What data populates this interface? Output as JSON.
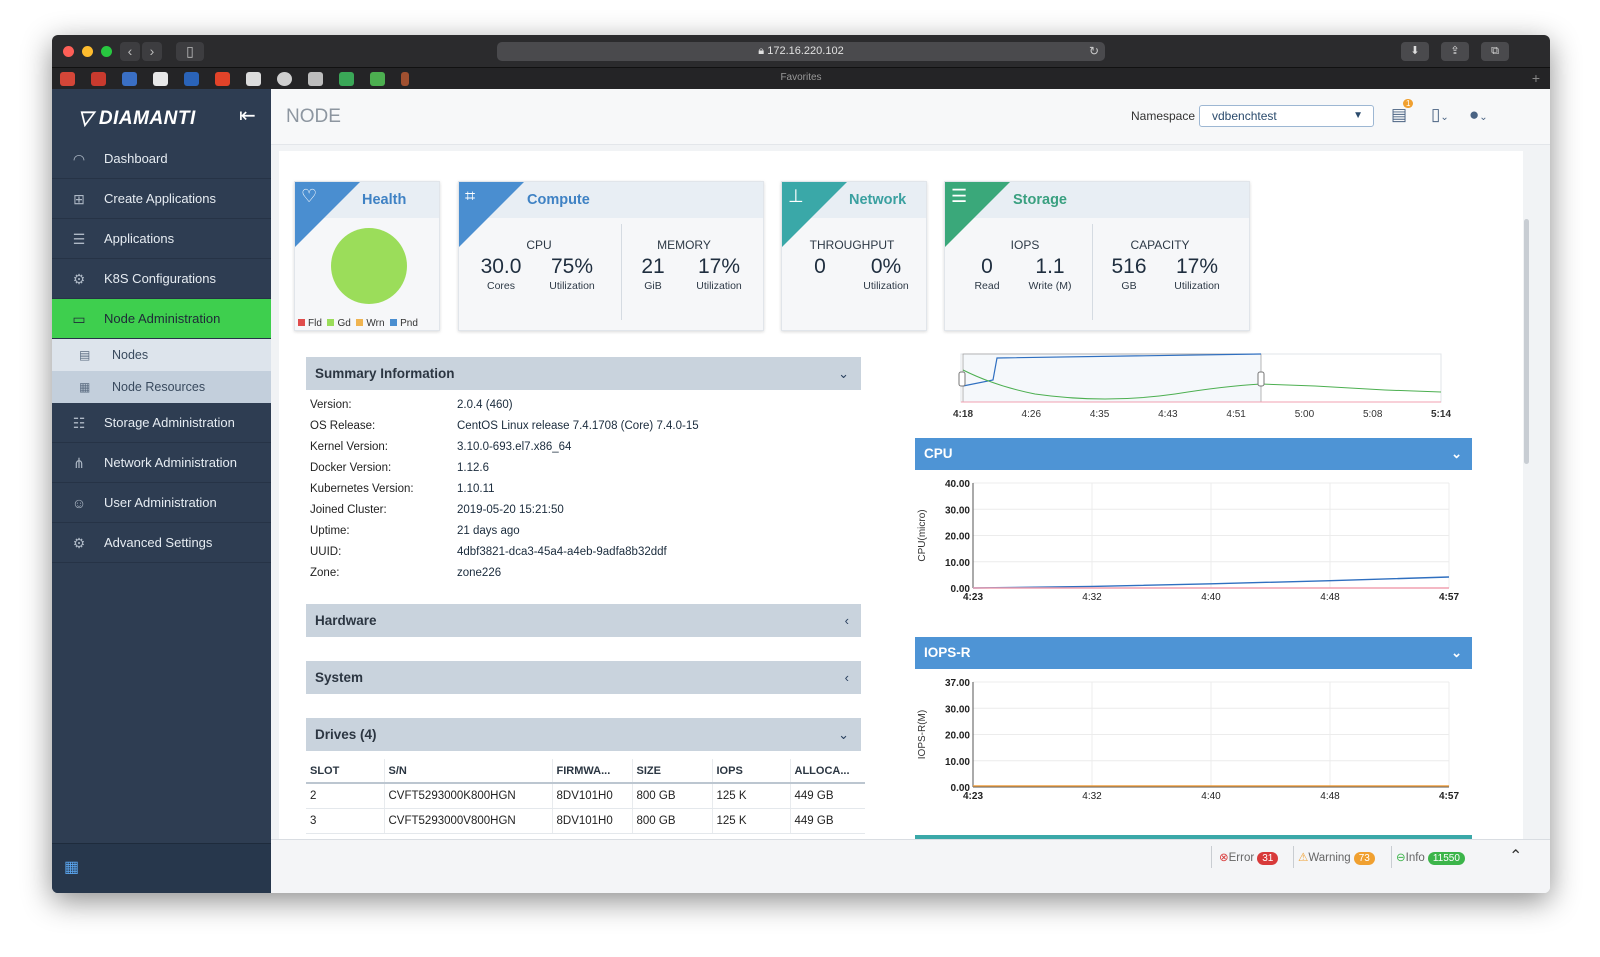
{
  "browser": {
    "url": "172.16.220.102",
    "favorites_label": "Favorites"
  },
  "sidebar": {
    "logo": "DIAMANTI",
    "items": [
      {
        "label": "Dashboard",
        "icon": "dashboard-gauge-icon"
      },
      {
        "label": "Create Applications",
        "icon": "plus-square-icon"
      },
      {
        "label": "Applications",
        "icon": "list-icon"
      },
      {
        "label": "K8S Configurations",
        "icon": "gear-cluster-icon"
      },
      {
        "label": "Node Administration",
        "icon": "monitor-icon",
        "active": true
      },
      {
        "label": "Storage Administration",
        "icon": "database-icon"
      },
      {
        "label": "Network Administration",
        "icon": "network-icon"
      },
      {
        "label": "User Administration",
        "icon": "users-icon"
      },
      {
        "label": "Advanced Settings",
        "icon": "settings-icon"
      }
    ],
    "sub_items": [
      {
        "label": "Nodes",
        "icon": "server-icon"
      },
      {
        "label": "Node Resources",
        "icon": "server-stack-icon",
        "selected": true
      }
    ]
  },
  "header": {
    "title": "NODE",
    "namespace_label": "Namespace",
    "namespace_value": "vdbenchtest",
    "notification_count": "1"
  },
  "cards": {
    "health": {
      "title": "Health",
      "legend": [
        "Fld",
        "Gd",
        "Wrn",
        "Pnd"
      ],
      "status_color": "#9bdd5a"
    },
    "compute": {
      "title": "Compute",
      "cpu_label": "CPU",
      "cpu_cores": "30.0",
      "cpu_cores_unit": "Cores",
      "cpu_util": "75%",
      "cpu_util_unit": "Utilization",
      "memory_label": "MEMORY",
      "mem_value": "21",
      "mem_unit": "GiB",
      "mem_util": "17%",
      "mem_util_unit": "Utilization"
    },
    "network": {
      "title": "Network",
      "throughput_label": "THROUGHPUT",
      "value": "0",
      "util": "0%",
      "util_unit": "Utilization"
    },
    "storage": {
      "title": "Storage",
      "iops_label": "IOPS",
      "read": "0",
      "read_unit": "Read",
      "write": "1.1",
      "write_unit": "Write (M)",
      "capacity_label": "CAPACITY",
      "capacity": "516",
      "capacity_unit": "GB",
      "cap_util": "17%",
      "cap_util_unit": "Utilization"
    }
  },
  "summary": {
    "title": "Summary Information",
    "rows": [
      {
        "key": "Version:",
        "value": "2.0.4 (460)"
      },
      {
        "key": "OS Release:",
        "value": "CentOS Linux release 7.4.1708 (Core) 7.4.0-15"
      },
      {
        "key": "Kernel Version:",
        "value": "3.10.0-693.el7.x86_64"
      },
      {
        "key": "Docker Version:",
        "value": "1.12.6"
      },
      {
        "key": "Kubernetes Version:",
        "value": "1.10.11"
      },
      {
        "key": "Joined Cluster:",
        "value": "2019-05-20 15:21:50"
      },
      {
        "key": "Uptime:",
        "value": "21 days ago"
      },
      {
        "key": "UUID:",
        "value": "4dbf3821-dca3-45a4-a4eb-9adfa8b32ddf"
      },
      {
        "key": "Zone:",
        "value": "zone226"
      }
    ]
  },
  "sections": {
    "hardware": "Hardware",
    "system": "System",
    "drives": "Drives (4)"
  },
  "drives_table": {
    "headers": [
      "SLOT",
      "S/N",
      "FIRMWA...",
      "SIZE",
      "IOPS",
      "ALLOCA..."
    ],
    "rows": [
      [
        "2",
        "CVFT5293000K800HGN",
        "8DV101H0",
        "800 GB",
        "125 K",
        "449 GB"
      ],
      [
        "3",
        "CVFT5293000V800HGN",
        "8DV101H0",
        "800 GB",
        "125 K",
        "449 GB"
      ]
    ]
  },
  "timeline": {
    "ticks": [
      "4:18",
      "4:26",
      "4:35",
      "4:43",
      "4:51",
      "5:00",
      "5:08",
      "5:14"
    ]
  },
  "chart_data": [
    {
      "type": "line",
      "title": "CPU",
      "ylabel": "CPU(micro)",
      "x": [
        "4:23",
        "4:32",
        "4:40",
        "4:48",
        "4:57"
      ],
      "yticks": [
        "40.00",
        "30.00",
        "20.00",
        "10.00",
        "0.00"
      ],
      "ylim": [
        0,
        40
      ],
      "series": [
        {
          "values": [
            0.0,
            0.6,
            1.6,
            2.8,
            4.2
          ],
          "color": "#2f6fc0"
        },
        {
          "values": [
            0.0,
            0.0,
            0.0,
            0.0,
            0.0
          ],
          "color": "#f0a0b0"
        }
      ]
    },
    {
      "type": "line",
      "title": "IOPS-R",
      "ylabel": "IOPS-R(M)",
      "x": [
        "4:23",
        "4:32",
        "4:40",
        "4:48",
        "4:57"
      ],
      "yticks": [
        "37.00",
        "30.00",
        "20.00",
        "10.00",
        "0.00"
      ],
      "ylim": [
        0,
        37
      ],
      "series": [
        {
          "values": [
            0.4,
            0.4,
            0.4,
            0.4,
            0.4
          ],
          "color": "#f0a040"
        }
      ]
    }
  ],
  "status": {
    "error_label": "Error",
    "error_count": "31",
    "warning_label": "Warning",
    "warning_count": "73",
    "info_label": "Info",
    "info_count": "11550"
  }
}
